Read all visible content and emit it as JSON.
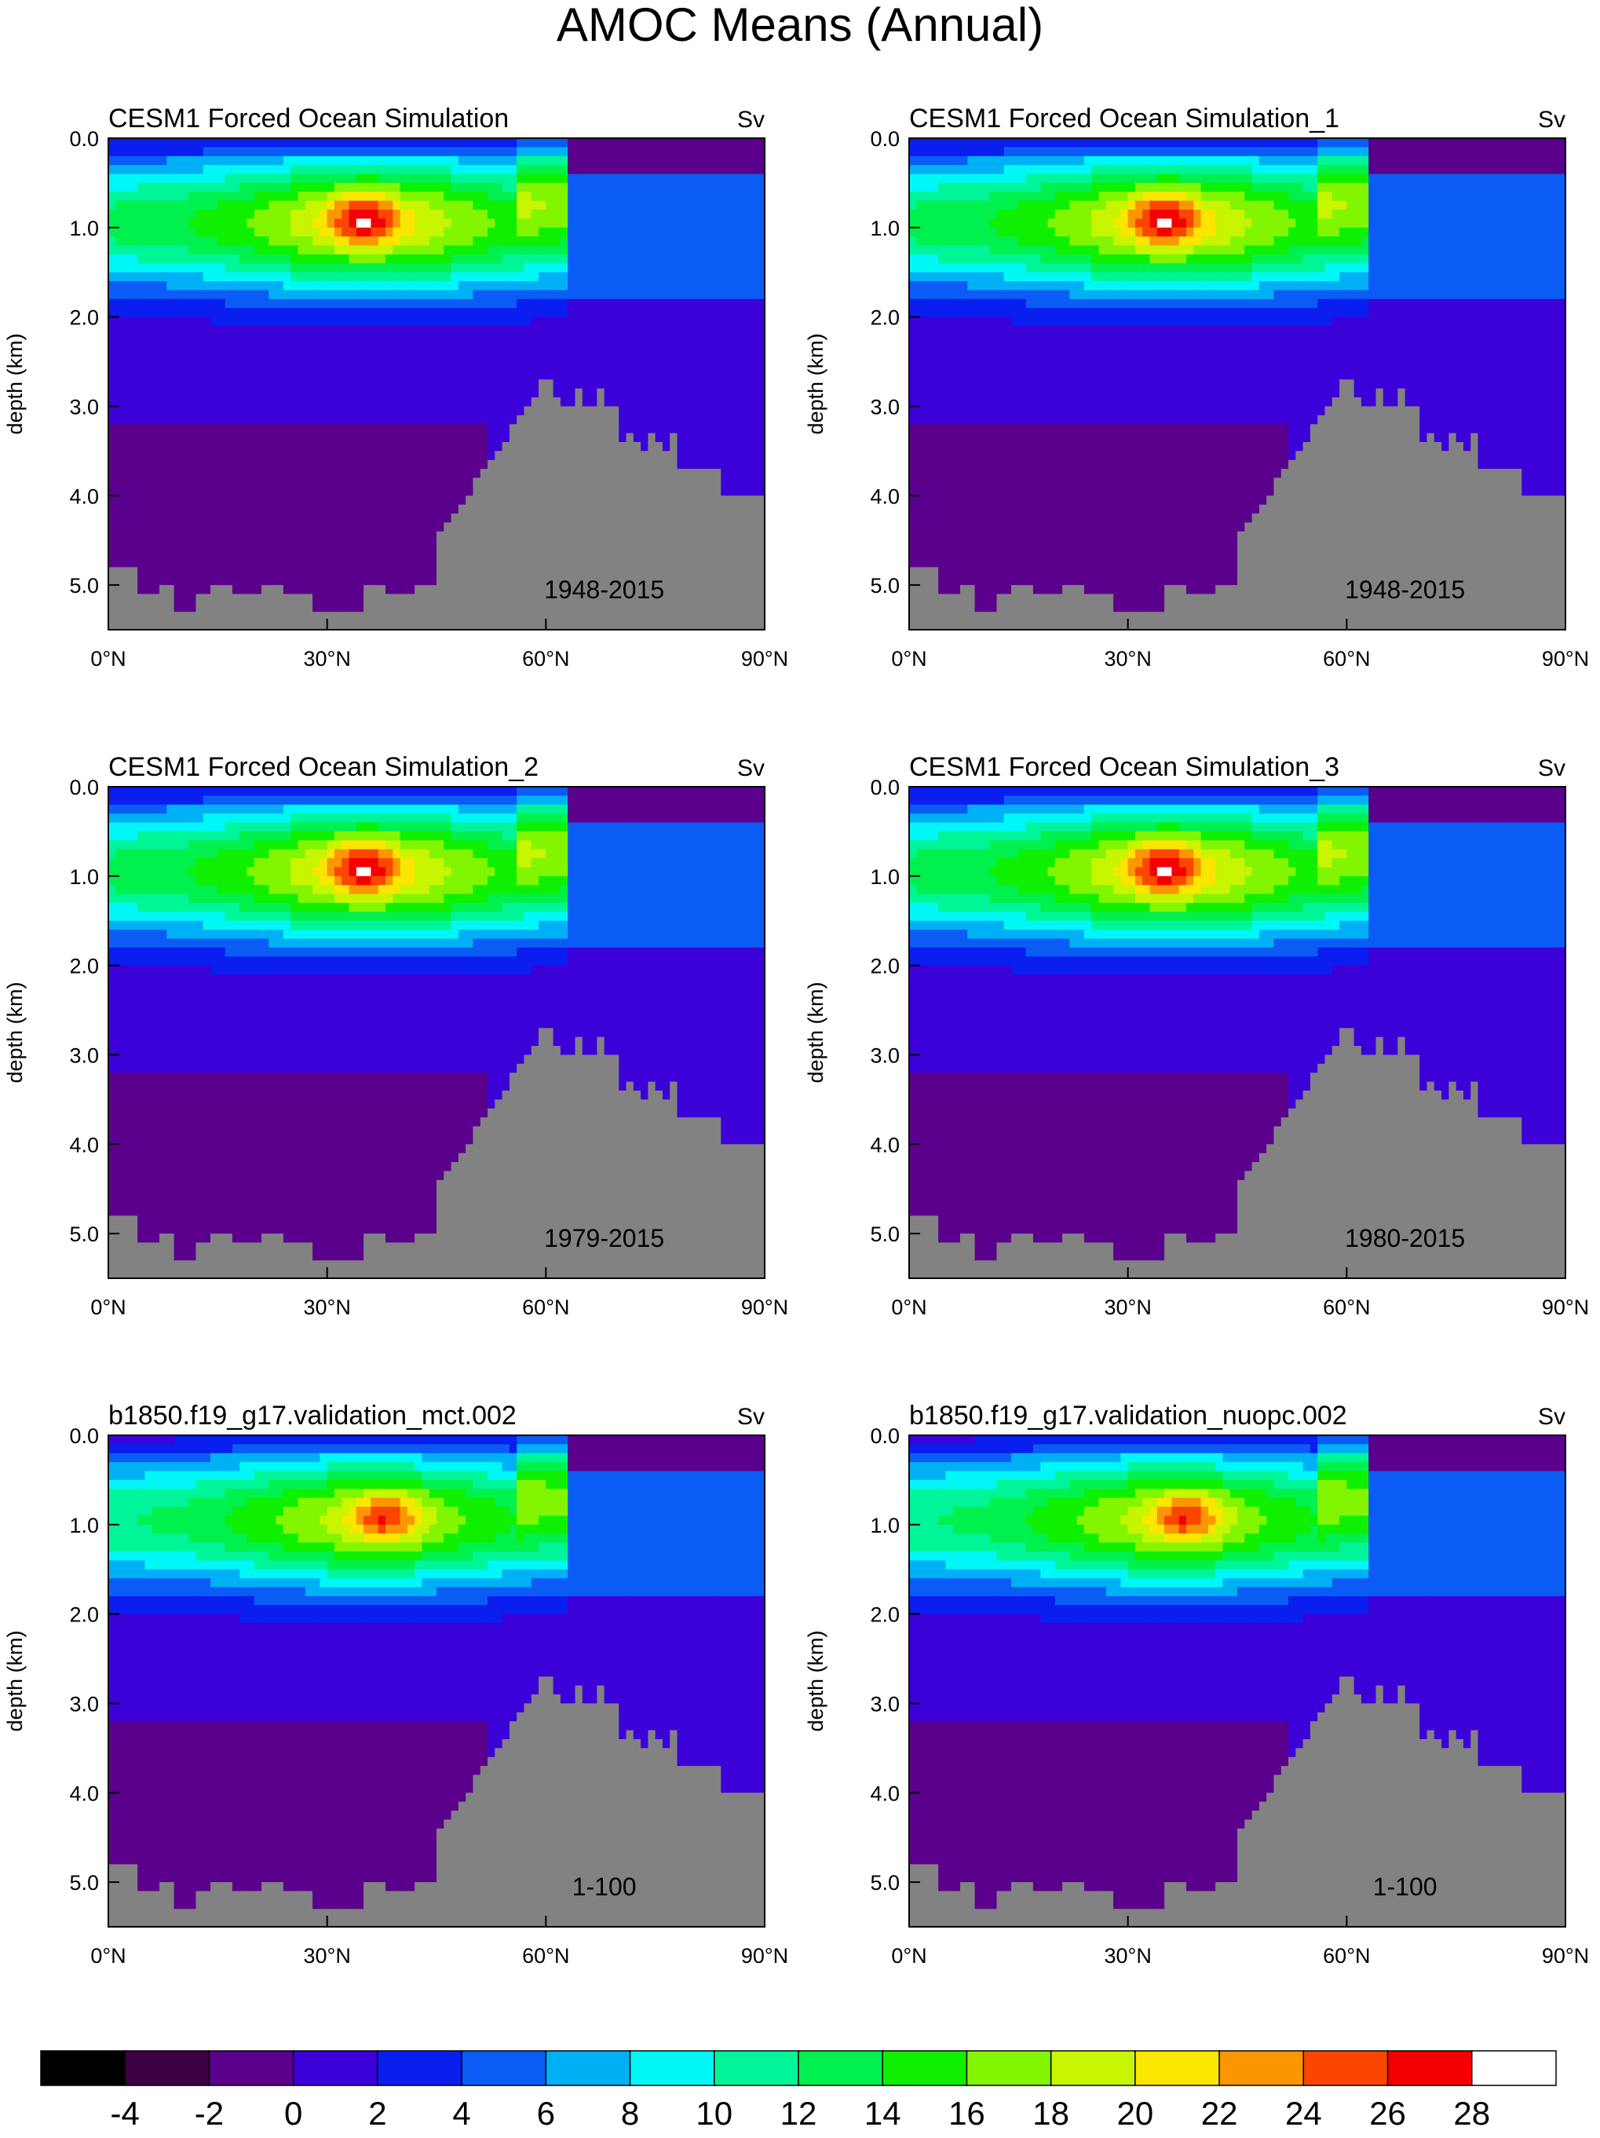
{
  "figure": {
    "title": "AMOC Means (Annual)"
  },
  "colors": {
    "topo": "#828282",
    "levels": [
      "#000000",
      "#3c0043",
      "#5a008c",
      "#3c00d8",
      "#0a1ef0",
      "#0a5cf5",
      "#00b0f5",
      "#00f7f6",
      "#00f598",
      "#00f04e",
      "#0ef000",
      "#82f500",
      "#c8f500",
      "#fae600",
      "#fa9600",
      "#fa4600",
      "#f50000",
      "#ffffff"
    ]
  },
  "colorbar": {
    "labels": [
      "-4",
      "-2",
      "0",
      "2",
      "4",
      "6",
      "8",
      "10",
      "12",
      "14",
      "16",
      "18",
      "20",
      "22",
      "24",
      "26",
      "28"
    ]
  },
  "chart_data": [
    {
      "type": "contour",
      "title": "CESM1 Forced Ocean Simulation",
      "units": "Sv",
      "period": "1948-2015",
      "ylabel": "depth (km)",
      "xticks": [
        "0°N",
        "30°N",
        "60°N",
        "90°N"
      ],
      "yticks": [
        "0.0",
        "1.0",
        "2.0",
        "3.0",
        "4.0",
        "5.0"
      ],
      "xlim": [
        0,
        90
      ],
      "ylim": [
        0.0,
        5.5
      ],
      "max_sv": 26,
      "max_lat": 35,
      "max_depth": 0.9
    },
    {
      "type": "contour",
      "title": "CESM1 Forced Ocean Simulation_1",
      "units": "Sv",
      "period": "1948-2015",
      "ylabel": "depth (km)",
      "xticks": [
        "0°N",
        "30°N",
        "60°N",
        "90°N"
      ],
      "yticks": [
        "0.0",
        "1.0",
        "2.0",
        "3.0",
        "4.0",
        "5.0"
      ],
      "xlim": [
        0,
        90
      ],
      "ylim": [
        0.0,
        5.5
      ],
      "max_sv": 26,
      "max_lat": 35,
      "max_depth": 0.9
    },
    {
      "type": "contour",
      "title": "CESM1 Forced Ocean Simulation_2",
      "units": "Sv",
      "period": "1979-2015",
      "ylabel": "depth (km)",
      "xticks": [
        "0°N",
        "30°N",
        "60°N",
        "90°N"
      ],
      "yticks": [
        "0.0",
        "1.0",
        "2.0",
        "3.0",
        "4.0",
        "5.0"
      ],
      "xlim": [
        0,
        90
      ],
      "ylim": [
        0.0,
        5.5
      ],
      "max_sv": 26,
      "max_lat": 35,
      "max_depth": 0.9
    },
    {
      "type": "contour",
      "title": "CESM1 Forced Ocean Simulation_3",
      "units": "Sv",
      "period": "1980-2015",
      "ylabel": "depth (km)",
      "xticks": [
        "0°N",
        "30°N",
        "60°N",
        "90°N"
      ],
      "yticks": [
        "0.0",
        "1.0",
        "2.0",
        "3.0",
        "4.0",
        "5.0"
      ],
      "xlim": [
        0,
        90
      ],
      "ylim": [
        0.0,
        5.5
      ],
      "max_sv": 26,
      "max_lat": 35,
      "max_depth": 0.9
    },
    {
      "type": "contour",
      "title": "b1850.f19_g17.validation_mct.002",
      "units": "Sv",
      "period": "1-100",
      "ylabel": "depth (km)",
      "xticks": [
        "0°N",
        "30°N",
        "60°N",
        "90°N"
      ],
      "yticks": [
        "0.0",
        "1.0",
        "2.0",
        "3.0",
        "4.0",
        "5.0"
      ],
      "xlim": [
        0,
        90
      ],
      "ylim": [
        0.0,
        5.5
      ],
      "max_sv": 24,
      "max_lat": 38,
      "max_depth": 0.9
    },
    {
      "type": "contour",
      "title": "b1850.f19_g17.validation_nuopc.002",
      "units": "Sv",
      "period": "1-100",
      "ylabel": "depth (km)",
      "xticks": [
        "0°N",
        "30°N",
        "60°N",
        "90°N"
      ],
      "yticks": [
        "0.0",
        "1.0",
        "2.0",
        "3.0",
        "4.0",
        "5.0"
      ],
      "xlim": [
        0,
        90
      ],
      "ylim": [
        0.0,
        5.5
      ],
      "max_sv": 24,
      "max_lat": 38,
      "max_depth": 0.9
    }
  ]
}
